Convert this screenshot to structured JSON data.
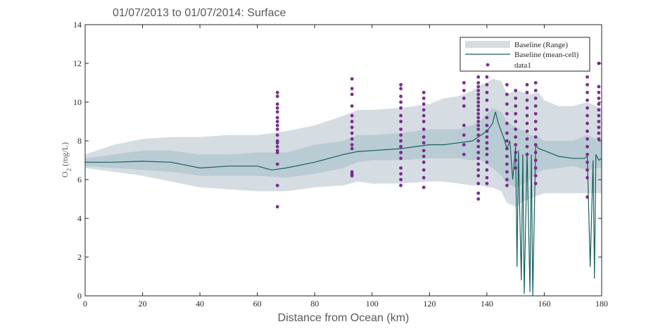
{
  "colors": {
    "range_outer": "#d5dde2",
    "range_inner": "#b9cbd3",
    "mean_line": "#15615f",
    "points": "#7b2d8f",
    "axis": "#262626",
    "title": "#595959"
  },
  "chart_data": {
    "type": "line",
    "title": "01/07/2013 to 01/07/2014: Surface",
    "xlabel": "Distance from Ocean (km)",
    "ylabel_main": "O",
    "ylabel_sub": "2",
    "ylabel_rest": " (mg/L)",
    "xlim": [
      0,
      180
    ],
    "ylim": [
      0,
      14
    ],
    "xticks": [
      "0",
      "20",
      "40",
      "60",
      "80",
      "100",
      "120",
      "140",
      "160",
      "180"
    ],
    "yticks": [
      "0",
      "2",
      "4",
      "6",
      "8",
      "10",
      "12",
      "14"
    ],
    "grid": false,
    "legend_position": "top-right",
    "legend": [
      "Baseline (Range)",
      "Baseline (mean-cell)",
      "data1"
    ],
    "series": [
      {
        "name": "Baseline (Range)",
        "kind": "band",
        "x": [
          0,
          10,
          20,
          30,
          40,
          50,
          60,
          70,
          80,
          90,
          95,
          100,
          110,
          120,
          125,
          130,
          135,
          138,
          140,
          142,
          145,
          147,
          150,
          153,
          155,
          158,
          160,
          165,
          170,
          175,
          178,
          180
        ],
        "outer_upper": [
          7.3,
          7.8,
          8.1,
          8.2,
          8.2,
          8.3,
          8.3,
          8.5,
          8.8,
          9.3,
          9.6,
          9.6,
          9.7,
          9.9,
          10.2,
          10.3,
          10.6,
          10.9,
          11.0,
          11.2,
          11.1,
          10.4,
          10.6,
          10.5,
          10.4,
          10.5,
          10.1,
          9.8,
          9.8,
          10.0,
          9.8,
          9.7
        ],
        "outer_lower": [
          6.6,
          6.4,
          6.2,
          5.9,
          5.6,
          5.5,
          5.4,
          5.4,
          5.6,
          5.7,
          5.9,
          5.8,
          5.8,
          5.9,
          5.9,
          5.8,
          5.7,
          5.7,
          5.6,
          5.6,
          5.4,
          4.8,
          4.6,
          4.9,
          5.0,
          5.2,
          5.3,
          5.3,
          5.3,
          5.3,
          5.3,
          5.3
        ],
        "inner_upper": [
          7.1,
          7.3,
          7.5,
          7.5,
          7.3,
          7.3,
          7.4,
          7.4,
          7.8,
          8.0,
          8.3,
          8.3,
          8.4,
          8.6,
          8.6,
          8.6,
          8.8,
          9.1,
          9.4,
          9.7,
          9.5,
          9.0,
          8.7,
          8.5,
          8.3,
          8.2,
          8.0,
          8.0,
          8.0,
          8.3,
          8.1,
          8.1
        ],
        "inner_lower": [
          6.7,
          6.6,
          6.5,
          6.4,
          6.2,
          6.2,
          6.2,
          6.1,
          6.3,
          6.6,
          6.9,
          7.0,
          7.0,
          7.1,
          7.1,
          7.1,
          7.0,
          7.0,
          6.8,
          6.6,
          6.2,
          5.8,
          5.6,
          5.8,
          6.0,
          6.4,
          6.5,
          6.6,
          6.7,
          6.5,
          6.6,
          6.6
        ]
      },
      {
        "name": "Baseline (mean-cell)",
        "kind": "line",
        "x": [
          0,
          10,
          20,
          30,
          40,
          50,
          60,
          65,
          70,
          80,
          90,
          95,
          100,
          110,
          120,
          125,
          130,
          135,
          138,
          140,
          142,
          143,
          144,
          145,
          146,
          147,
          148,
          149,
          150,
          150.5,
          151,
          152,
          152.5,
          153,
          154,
          155,
          155.5,
          156,
          157,
          158,
          160,
          165,
          170,
          174,
          175,
          176,
          177,
          177.5,
          178,
          179,
          180
        ],
        "y": [
          6.9,
          6.9,
          6.95,
          6.9,
          6.6,
          6.7,
          6.7,
          6.5,
          6.6,
          6.9,
          7.3,
          7.45,
          7.5,
          7.6,
          7.8,
          7.8,
          7.9,
          8.0,
          8.3,
          8.5,
          8.9,
          9.5,
          8.9,
          8.5,
          8.1,
          7.6,
          8.0,
          6.0,
          7.7,
          1.5,
          7.5,
          0.8,
          7.3,
          0.1,
          7.4,
          0.2,
          7.3,
          0.0,
          7.8,
          7.6,
          7.5,
          7.2,
          7.1,
          7.1,
          7.2,
          1.5,
          7.0,
          0.9,
          7.3,
          7.0,
          7.1
        ]
      },
      {
        "name": "data1",
        "kind": "scatter",
        "points": [
          {
            "x": 67,
            "y": [
              10.5,
              10.3,
              9.9,
              9.7,
              9.5,
              9.2,
              9.0,
              8.8,
              8.6,
              8.3,
              8.0,
              7.9,
              7.7,
              7.5,
              7.4,
              6.8,
              5.7,
              4.6
            ]
          },
          {
            "x": 93,
            "y": [
              11.2,
              10.7,
              10.4,
              9.8,
              9.3,
              9.0,
              8.7,
              8.4,
              8.1,
              7.8,
              7.6,
              6.4,
              6.3,
              6.2
            ]
          },
          {
            "x": 110,
            "y": [
              10.9,
              10.7,
              10.3,
              10.0,
              9.7,
              9.3,
              9.0,
              8.6,
              8.3,
              8.0,
              7.7,
              7.4,
              7.1,
              6.6,
              6.3,
              6.0,
              5.7
            ]
          },
          {
            "x": 118,
            "y": [
              10.5,
              10.2,
              9.9,
              9.6,
              9.3,
              9.0,
              8.6,
              8.2,
              7.9,
              7.5,
              7.2,
              6.9,
              6.5,
              6.1,
              5.6
            ]
          },
          {
            "x": 132,
            "y": [
              11.0,
              10.6,
              10.2,
              9.8,
              8.8,
              8.3,
              7.8,
              7.3
            ]
          },
          {
            "x": 137,
            "y": [
              11.3,
              11.0,
              10.8,
              10.6,
              10.4,
              10.2,
              10.0,
              9.8,
              9.6,
              9.4,
              9.2,
              9.0,
              8.8,
              8.6,
              8.3,
              8.0,
              7.7,
              7.4,
              7.1,
              6.8,
              6.5,
              6.2,
              5.8,
              5.3,
              5.0
            ]
          },
          {
            "x": 140,
            "y": [
              11.9,
              11.3,
              10.9,
              10.5,
              10.1,
              9.6,
              9.2,
              8.8,
              8.5,
              8.2,
              7.9,
              7.6,
              7.3,
              6.9,
              6.5,
              6.1,
              5.8
            ]
          },
          {
            "x": 147,
            "y": [
              10.9,
              10.4,
              9.9,
              9.4,
              8.9,
              8.4,
              8.0,
              7.6,
              7.2,
              6.8,
              6.4,
              6.0,
              5.7
            ]
          },
          {
            "x": 150,
            "y": [
              10.6,
              10.2,
              9.8,
              9.4,
              9.0,
              8.6,
              8.2,
              7.8,
              7.4,
              7.0,
              6.6
            ]
          },
          {
            "x": 154,
            "y": [
              10.9,
              10.5,
              10.1,
              9.7,
              9.3,
              8.9,
              8.5,
              8.1,
              7.7,
              7.3
            ]
          },
          {
            "x": 157,
            "y": [
              11.0,
              10.6,
              10.2,
              9.8,
              9.4,
              9.0,
              8.6,
              8.2,
              7.8,
              7.4,
              7.0,
              6.6,
              6.2,
              5.8
            ]
          },
          {
            "x": 175,
            "y": [
              11.3,
              10.9,
              10.5,
              10.1,
              9.7,
              9.3,
              8.9,
              8.5,
              8.1,
              7.7,
              7.3,
              6.9,
              6.5,
              6.1,
              5.1
            ]
          },
          {
            "x": 179,
            "y": [
              12.0,
              10.8,
              10.5,
              10.2,
              9.9,
              9.6,
              9.3,
              9.0,
              8.7,
              8.4,
              8.1
            ]
          }
        ]
      }
    ]
  }
}
